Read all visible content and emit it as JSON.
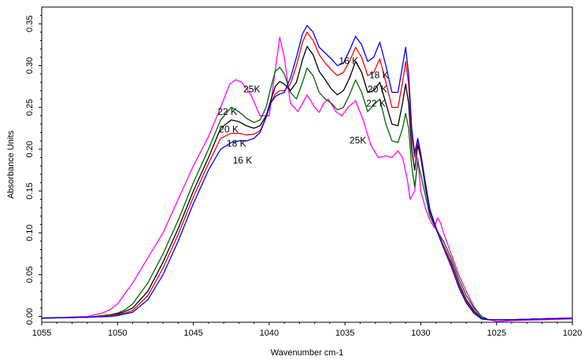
{
  "chart_data": {
    "type": "line",
    "xlabel": "Wavenumber cm-1",
    "ylabel": "Absorbance Units",
    "xlim": [
      1055,
      1020
    ],
    "ylim": [
      -0.007,
      0.37
    ],
    "x_ticks": [
      "1055",
      "1050",
      "1045",
      "1040",
      "1035",
      "1030",
      "1025",
      "1020"
    ],
    "x_tick_values": [
      1055,
      1050,
      1045,
      1040,
      1035,
      1030,
      1025,
      1020
    ],
    "y_ticks": [
      "0.00",
      "0.05",
      "0.10",
      "0.15",
      "0.20",
      "0.25",
      "0.30",
      "0.35"
    ],
    "y_tick_values": [
      0,
      0.05,
      0.1,
      0.15,
      0.2,
      0.25,
      0.3,
      0.35
    ],
    "grid": false,
    "legend": "none",
    "series": [
      {
        "color": "#ff00ff",
        "x": [
          1055,
          1052,
          1051,
          1050.5,
          1050,
          1049,
          1048,
          1047,
          1046,
          1045,
          1044,
          1043.2,
          1042.6,
          1042.2,
          1041.8,
          1041.2,
          1040.6,
          1040,
          1039.6,
          1039.3,
          1039,
          1038.6,
          1038.1,
          1037.5,
          1037,
          1036.7,
          1036.4,
          1036.1,
          1035.6,
          1035.2,
          1034.8,
          1034.3,
          1033.8,
          1033.3,
          1032.8,
          1032.3,
          1031.9,
          1031.5,
          1031.2,
          1030.9,
          1030.7,
          1030.4,
          1030.2,
          1030,
          1029.7,
          1029.4,
          1029.1,
          1028.9,
          1028.7,
          1028.5,
          1028,
          1027.5,
          1027,
          1026.5,
          1026,
          1025.5,
          1025,
          1024,
          1022,
          1020
        ],
        "y": [
          -0.002,
          0.0,
          0.004,
          0.008,
          0.015,
          0.04,
          0.07,
          0.1,
          0.14,
          0.18,
          0.215,
          0.25,
          0.278,
          0.283,
          0.28,
          0.265,
          0.24,
          0.24,
          0.295,
          0.334,
          0.31,
          0.255,
          0.245,
          0.265,
          0.25,
          0.244,
          0.255,
          0.26,
          0.245,
          0.24,
          0.25,
          0.258,
          0.235,
          0.205,
          0.19,
          0.192,
          0.19,
          0.198,
          0.19,
          0.165,
          0.14,
          0.15,
          0.19,
          0.15,
          0.13,
          0.115,
          0.106,
          0.118,
          0.112,
          0.1,
          0.075,
          0.05,
          0.03,
          0.012,
          0.0,
          -0.004,
          -0.006,
          -0.005,
          -0.004,
          -0.003
        ]
      },
      {
        "color": "#006600",
        "x": [
          1055,
          1052,
          1050.5,
          1050,
          1049.5,
          1049,
          1048,
          1047,
          1046,
          1045,
          1044,
          1043.2,
          1042.5,
          1042,
          1041.5,
          1041,
          1040.6,
          1040.2,
          1039.9,
          1039.6,
          1039.3,
          1039,
          1038.6,
          1038.2,
          1037.8,
          1037.5,
          1037.1,
          1036.7,
          1036.3,
          1035.9,
          1035.5,
          1035.1,
          1034.7,
          1034.3,
          1033.9,
          1033.5,
          1033.1,
          1032.7,
          1032.3,
          1031.9,
          1031.5,
          1031.2,
          1031,
          1030.8,
          1030.6,
          1030.4,
          1030.2,
          1030,
          1029.7,
          1029.4,
          1029,
          1028.5,
          1028,
          1027.5,
          1027,
          1026.5,
          1026,
          1025.5,
          1025,
          1024,
          1022,
          1020
        ],
        "y": [
          -0.002,
          -0.001,
          0.002,
          0.004,
          0.008,
          0.015,
          0.04,
          0.075,
          0.115,
          0.16,
          0.2,
          0.235,
          0.25,
          0.245,
          0.237,
          0.232,
          0.235,
          0.25,
          0.273,
          0.293,
          0.298,
          0.29,
          0.268,
          0.26,
          0.28,
          0.297,
          0.288,
          0.268,
          0.26,
          0.255,
          0.247,
          0.25,
          0.265,
          0.283,
          0.268,
          0.245,
          0.253,
          0.26,
          0.23,
          0.21,
          0.208,
          0.225,
          0.243,
          0.225,
          0.18,
          0.155,
          0.185,
          0.17,
          0.145,
          0.12,
          0.105,
          0.09,
          0.07,
          0.045,
          0.025,
          0.01,
          0.0,
          -0.004,
          -0.004,
          -0.004,
          -0.003,
          -0.002
        ]
      },
      {
        "color": "#000000",
        "x": [
          1055,
          1052,
          1050.5,
          1050,
          1049.5,
          1049,
          1048,
          1047,
          1046,
          1045,
          1044,
          1043.2,
          1042.5,
          1042,
          1041.5,
          1041,
          1040.6,
          1040.2,
          1039.9,
          1039.6,
          1039.3,
          1039,
          1038.6,
          1038.2,
          1037.8,
          1037.5,
          1037.1,
          1036.7,
          1036.3,
          1035.9,
          1035.5,
          1035.1,
          1034.7,
          1034.3,
          1033.9,
          1033.5,
          1033.1,
          1032.7,
          1032.3,
          1031.9,
          1031.5,
          1031.2,
          1031,
          1030.8,
          1030.6,
          1030.4,
          1030.2,
          1030,
          1029.7,
          1029.4,
          1029,
          1028.5,
          1028,
          1027.5,
          1027,
          1026.5,
          1026,
          1025.5,
          1025,
          1024,
          1022,
          1020
        ],
        "y": [
          -0.002,
          -0.001,
          0.001,
          0.003,
          0.006,
          0.01,
          0.03,
          0.065,
          0.105,
          0.15,
          0.19,
          0.225,
          0.235,
          0.233,
          0.228,
          0.225,
          0.228,
          0.24,
          0.258,
          0.275,
          0.281,
          0.278,
          0.27,
          0.28,
          0.307,
          0.323,
          0.313,
          0.293,
          0.283,
          0.272,
          0.265,
          0.27,
          0.285,
          0.305,
          0.292,
          0.268,
          0.27,
          0.28,
          0.255,
          0.23,
          0.228,
          0.255,
          0.278,
          0.255,
          0.2,
          0.175,
          0.205,
          0.19,
          0.155,
          0.125,
          0.105,
          0.085,
          0.065,
          0.04,
          0.02,
          0.007,
          -0.002,
          -0.004,
          -0.004,
          -0.004,
          -0.003,
          -0.002
        ]
      },
      {
        "color": "#ff0000",
        "x": [
          1055,
          1052,
          1050.5,
          1050,
          1049.5,
          1049,
          1048,
          1047,
          1046,
          1045,
          1044,
          1043.2,
          1042.5,
          1042,
          1041.5,
          1041,
          1040.6,
          1040.2,
          1039.9,
          1039.6,
          1039.3,
          1039,
          1038.6,
          1038.2,
          1037.8,
          1037.5,
          1037.1,
          1036.7,
          1036.3,
          1035.9,
          1035.5,
          1035.1,
          1034.7,
          1034.3,
          1033.9,
          1033.5,
          1033.1,
          1032.7,
          1032.3,
          1031.9,
          1031.5,
          1031.2,
          1031,
          1030.8,
          1030.6,
          1030.4,
          1030.2,
          1030,
          1029.7,
          1029.4,
          1029,
          1028.5,
          1028,
          1027.5,
          1027,
          1026.5,
          1026,
          1025.5,
          1025,
          1024,
          1022,
          1020
        ],
        "y": [
          -0.002,
          -0.001,
          0.001,
          0.002,
          0.004,
          0.007,
          0.025,
          0.058,
          0.098,
          0.143,
          0.183,
          0.213,
          0.219,
          0.219,
          0.217,
          0.218,
          0.222,
          0.238,
          0.255,
          0.266,
          0.27,
          0.27,
          0.278,
          0.3,
          0.328,
          0.34,
          0.33,
          0.313,
          0.303,
          0.295,
          0.288,
          0.292,
          0.305,
          0.322,
          0.31,
          0.288,
          0.292,
          0.308,
          0.28,
          0.25,
          0.25,
          0.28,
          0.305,
          0.278,
          0.215,
          0.19,
          0.21,
          0.193,
          0.16,
          0.128,
          0.107,
          0.085,
          0.063,
          0.038,
          0.018,
          0.005,
          -0.003,
          -0.004,
          -0.004,
          -0.004,
          -0.003,
          -0.002
        ]
      },
      {
        "color": "#0000ff",
        "x": [
          1055,
          1052,
          1050.5,
          1050,
          1049.5,
          1049,
          1048,
          1047,
          1046,
          1045,
          1044,
          1043.2,
          1042.5,
          1042,
          1041.5,
          1041,
          1040.6,
          1040.2,
          1039.9,
          1039.6,
          1039.3,
          1039,
          1038.6,
          1038.2,
          1037.8,
          1037.5,
          1037.1,
          1036.7,
          1036.3,
          1035.9,
          1035.5,
          1035.1,
          1034.7,
          1034.3,
          1033.9,
          1033.5,
          1033.1,
          1032.7,
          1032.3,
          1031.9,
          1031.5,
          1031.2,
          1031,
          1030.8,
          1030.6,
          1030.4,
          1030.2,
          1030,
          1029.7,
          1029.4,
          1029,
          1028.5,
          1028,
          1027.5,
          1027,
          1026.5,
          1026,
          1025.5,
          1025,
          1024,
          1022,
          1020
        ],
        "y": [
          -0.002,
          -0.001,
          0.0,
          0.001,
          0.003,
          0.005,
          0.02,
          0.05,
          0.09,
          0.135,
          0.175,
          0.2,
          0.208,
          0.21,
          0.21,
          0.213,
          0.22,
          0.238,
          0.255,
          0.263,
          0.266,
          0.268,
          0.285,
          0.31,
          0.338,
          0.348,
          0.34,
          0.322,
          0.315,
          0.308,
          0.3,
          0.303,
          0.318,
          0.335,
          0.325,
          0.305,
          0.31,
          0.328,
          0.3,
          0.268,
          0.268,
          0.3,
          0.322,
          0.29,
          0.225,
          0.195,
          0.213,
          0.195,
          0.16,
          0.128,
          0.105,
          0.082,
          0.06,
          0.035,
          0.016,
          0.004,
          -0.003,
          -0.004,
          -0.004,
          -0.004,
          -0.003,
          -0.002
        ]
      }
    ],
    "annotations": [
      {
        "text": "16 K",
        "x": 1035.4,
        "y": 0.302
      },
      {
        "text": "18 K",
        "x": 1033.4,
        "y": 0.285
      },
      {
        "text": "20 K",
        "x": 1033.5,
        "y": 0.268
      },
      {
        "text": "22 K",
        "x": 1033.6,
        "y": 0.251
      },
      {
        "text": "25K",
        "x": 1041.7,
        "y": 0.268
      },
      {
        "text": "25K",
        "x": 1034.7,
        "y": 0.207
      },
      {
        "text": "22 K",
        "x": 1043.4,
        "y": 0.241
      },
      {
        "text": "20 K",
        "x": 1043.3,
        "y": 0.22
      },
      {
        "text": "18 K",
        "x": 1042.8,
        "y": 0.203
      },
      {
        "text": "16 K",
        "x": 1042.4,
        "y": 0.183
      }
    ]
  }
}
